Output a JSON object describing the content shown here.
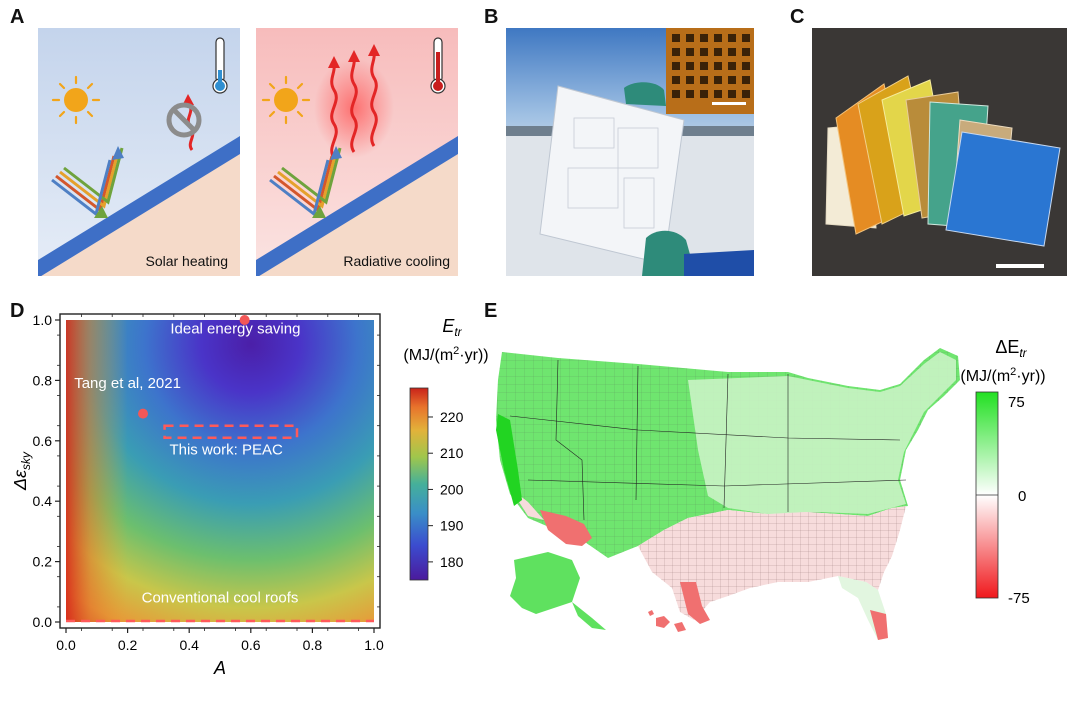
{
  "figure": {
    "panel_letters": [
      "A",
      "B",
      "C",
      "D",
      "E"
    ]
  },
  "panel_a": {
    "left_caption": "Solar heating",
    "right_caption": "Radiative cooling",
    "icons": [
      "sun-icon",
      "thermometer-icon",
      "blocked-icon",
      "heat-wave-icon"
    ],
    "colors": {
      "left_bg": "#c9d9ef",
      "right_bg": "#f6c6c6",
      "roof": "#3d6fc7",
      "ground": "#f4d6c4"
    }
  },
  "panel_b": {
    "description_icon": "photo-film-icon"
  },
  "panel_c": {
    "description_icon": "photo-colored-films-icon"
  },
  "panel_d": {
    "ylabel": "Δε",
    "ylabel_sub": "sky",
    "xlabel": "A",
    "xticks": [
      "0.0",
      "0.2",
      "0.4",
      "0.6",
      "0.8",
      "1.0"
    ],
    "yticks": [
      "0.0",
      "0.2",
      "0.4",
      "0.6",
      "0.8",
      "1.0"
    ],
    "annotations": {
      "ideal": "Ideal energy saving",
      "tang": "Tang et al, 2021",
      "this_work": "This work: PEAC",
      "cool_roofs": "Conventional cool roofs"
    },
    "colorbar": {
      "title": "E",
      "title_sub": "tr",
      "unit_prefix": "(MJ/(m",
      "unit_sup": "2",
      "unit_suffix": "·yr))",
      "ticks": [
        "220",
        "210",
        "200",
        "190",
        "180"
      ]
    }
  },
  "chart_data": {
    "type": "heatmap",
    "xlabel": "A",
    "ylabel": "Δε_sky",
    "xlim": [
      0,
      1
    ],
    "ylim": [
      0,
      1
    ],
    "colorbar_range": [
      175,
      228
    ],
    "points": [
      {
        "label": "Ideal energy saving",
        "x": 0.58,
        "y": 1.0
      },
      {
        "label": "Tang et al, 2021",
        "x": 0.25,
        "y": 0.69
      }
    ],
    "regions": [
      {
        "label": "This work: PEAC",
        "x": [
          0.32,
          0.75
        ],
        "y": [
          0.61,
          0.65
        ]
      },
      {
        "label": "Conventional cool roofs",
        "x": [
          0.0,
          1.0
        ],
        "y": [
          0.0,
          0.0
        ]
      }
    ]
  },
  "panel_e": {
    "colorbar": {
      "title": "ΔE",
      "title_sub": "tr",
      "unit_prefix": "(MJ/(m",
      "unit_sup": "2",
      "unit_suffix": "·yr))",
      "ticks": [
        "75",
        "0",
        "-75"
      ]
    },
    "map_icon": "us-county-map-icon"
  }
}
